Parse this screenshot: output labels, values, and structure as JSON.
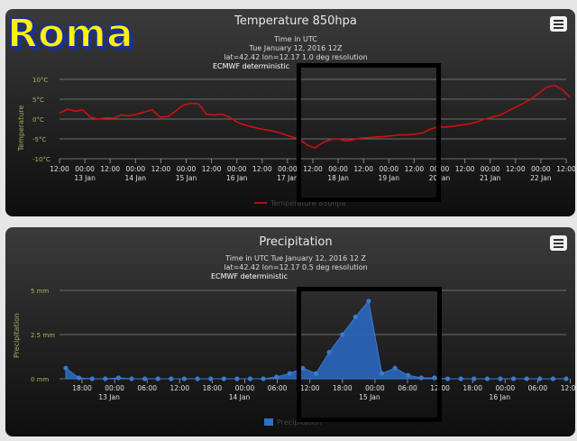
{
  "logo_text": "Roma",
  "chart_data": [
    {
      "type": "line",
      "title": "Temperature 850hpa",
      "subtitle_lines": [
        "Time in UTC",
        "Tue January 12, 2016 12Z",
        "lat=42.42 lon=12.17 1.0 deg resolution"
      ],
      "model_label": "ECMWF deterministic",
      "ylabel": "Temperature",
      "ylim": [
        -10,
        10
      ],
      "yticks": [
        10,
        5,
        0,
        -5,
        -10
      ],
      "ytick_labels": [
        "10°C",
        "5°C",
        "0°C",
        "-5°C",
        "-10°C"
      ],
      "xticks": [
        "12:00",
        "00:00",
        "12:00",
        "00:00",
        "12:00",
        "00:00",
        "12:00",
        "00:00",
        "12:00",
        "00:00",
        "12:00",
        "00:00",
        "12:00",
        "00:00",
        "12:00",
        "00:00",
        "12:00",
        "00:00",
        "12:00",
        "00:00",
        "12:00"
      ],
      "day_labels": [
        "13 Jan",
        "14 Jan",
        "15 Jan",
        "16 Jan",
        "17 Jan",
        "18 Jan",
        "19 Jan",
        "20 Jan",
        "21 Jan",
        "22 Jan"
      ],
      "series": [
        {
          "name": "Temperature 850hpa",
          "color": "#d01010",
          "values": [
            1.5,
            2.5,
            2.0,
            2.3,
            0.5,
            0.0,
            0.3,
            0.2,
            1.0,
            0.8,
            1.2,
            1.8,
            2.3,
            0.5,
            0.6,
            2.0,
            3.5,
            4.0,
            3.8,
            1.2,
            1.0,
            1.2,
            0.5,
            -0.8,
            -1.5,
            -2.0,
            -2.5,
            -2.8,
            -3.2,
            -3.8,
            -4.5,
            -5.0,
            -6.5,
            -7.3,
            -6.0,
            -5.2,
            -5.0,
            -5.5,
            -5.2,
            -4.8,
            -4.7,
            -4.5,
            -4.4,
            -4.2,
            -4.0,
            -4.0,
            -3.8,
            -3.5,
            -2.5,
            -2.0,
            -2.0,
            -1.8,
            -1.5,
            -1.2,
            -0.7,
            0.0,
            0.5,
            1.0,
            2.0,
            3.0,
            4.0,
            5.0,
            6.5,
            8.0,
            8.5,
            7.5,
            5.5
          ]
        }
      ]
    },
    {
      "type": "area",
      "title": "Precipitation",
      "subtitle_lines": [
        "Time in UTC Tue January 12, 2016 12 Z",
        "lat=42.42 lon=12.17 0.5 deg resolution"
      ],
      "model_label": "ECMWF deterministic",
      "ylabel": "Precipitation",
      "ylim": [
        0,
        5
      ],
      "yticks": [
        5,
        2.5,
        0
      ],
      "ytick_labels": [
        "5 mm",
        "2.5 mm",
        "0 mm"
      ],
      "xticks": [
        "18:00",
        "00:00",
        "06:00",
        "12:00",
        "18:00",
        "00:00",
        "06:00",
        "12:00",
        "18:00",
        "00:00",
        "06:00",
        "12:00",
        "18:00",
        "00:00",
        "06:00",
        "12:00"
      ],
      "day_labels": [
        "13 Jan",
        "14 Jan",
        "15 Jan",
        "16 Jan"
      ],
      "series": [
        {
          "name": "Precipitation",
          "color": "#2f6fc2",
          "values": [
            0.6,
            0.05,
            0.0,
            0.0,
            0.05,
            0.0,
            0.0,
            0.0,
            0.0,
            0.0,
            0.0,
            0.0,
            0.0,
            0.0,
            0.0,
            0.0,
            0.1,
            0.3,
            0.6,
            0.3,
            1.5,
            2.5,
            3.5,
            4.4,
            0.3,
            0.6,
            0.2,
            0.05,
            0.05,
            0.0,
            0.0,
            0.0,
            0.0,
            0.0,
            0.0,
            0.0,
            0.0,
            0.0,
            0.0
          ]
        }
      ]
    }
  ]
}
